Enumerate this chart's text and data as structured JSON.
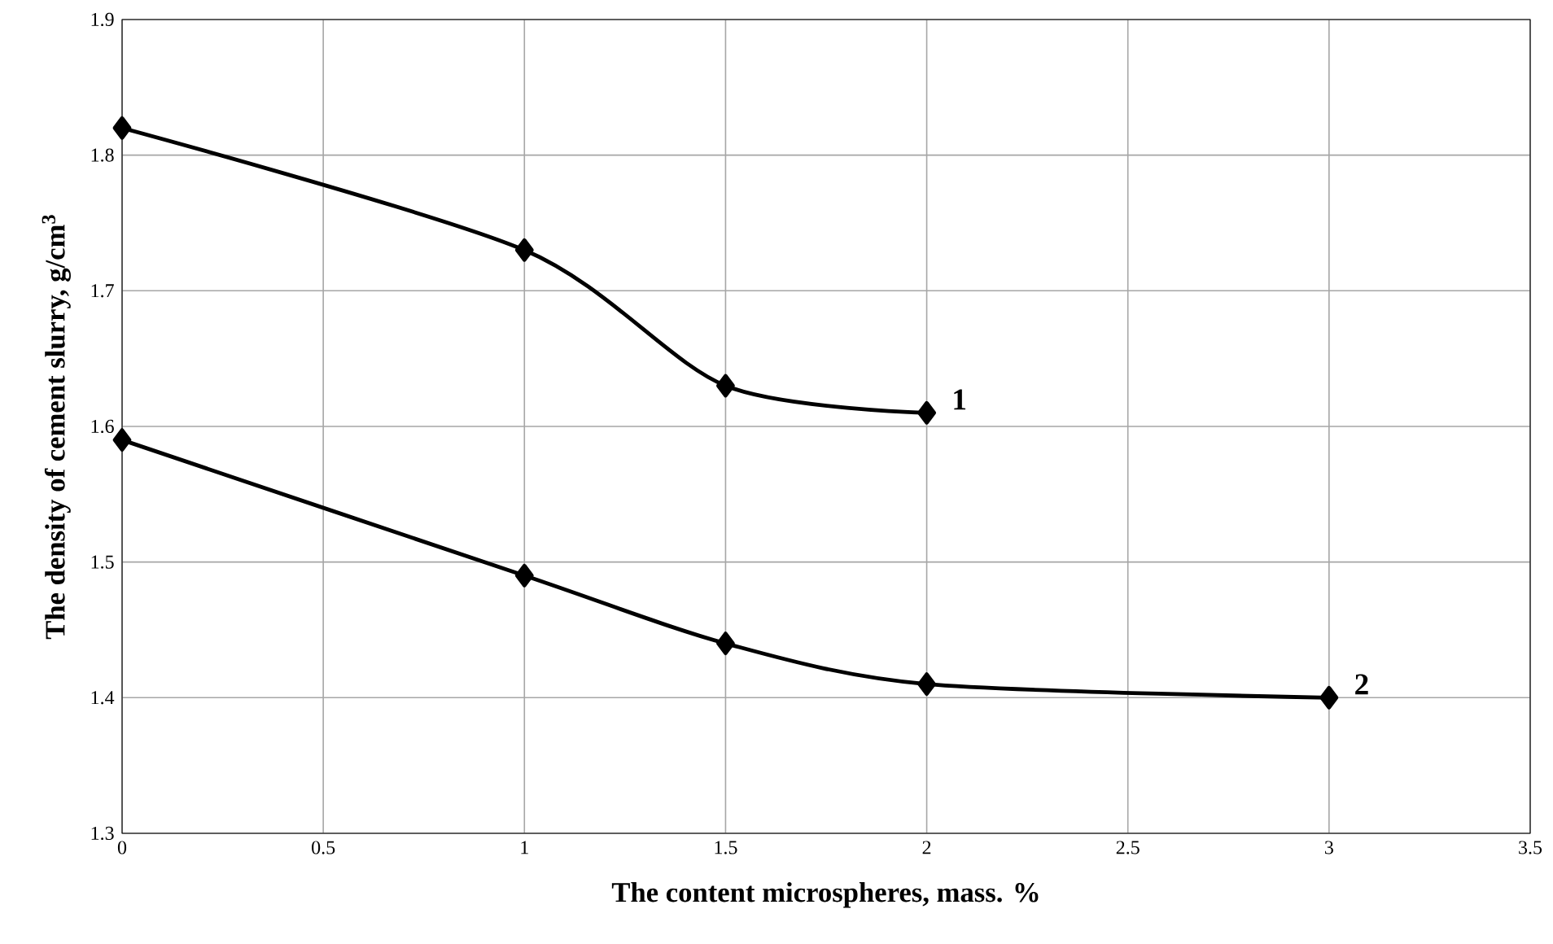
{
  "chart_data": {
    "type": "line",
    "xlabel": "The content microspheres, mass. %",
    "ylabel": "The density of cement slurry, g/cm$^{3}$",
    "xlim": [
      0,
      3.5
    ],
    "xticks": [
      0,
      0.5,
      1,
      1.5,
      2,
      2.5,
      3,
      3.5
    ],
    "ylim": [
      1.3,
      1.9
    ],
    "yticks": [
      1.3,
      1.4,
      1.5,
      1.6,
      1.7,
      1.8,
      1.9
    ],
    "grid": true,
    "marker": "diamond",
    "line_style": "solid",
    "series": [
      {
        "name": "1",
        "color": "#000000",
        "x": [
          0,
          1,
          1.5,
          2
        ],
        "values": [
          1.82,
          1.73,
          1.63,
          1.61
        ]
      },
      {
        "name": "2",
        "color": "#000000",
        "x": [
          0,
          1,
          1.5,
          2,
          3
        ],
        "values": [
          1.59,
          1.49,
          1.44,
          1.41,
          1.4
        ]
      }
    ]
  }
}
